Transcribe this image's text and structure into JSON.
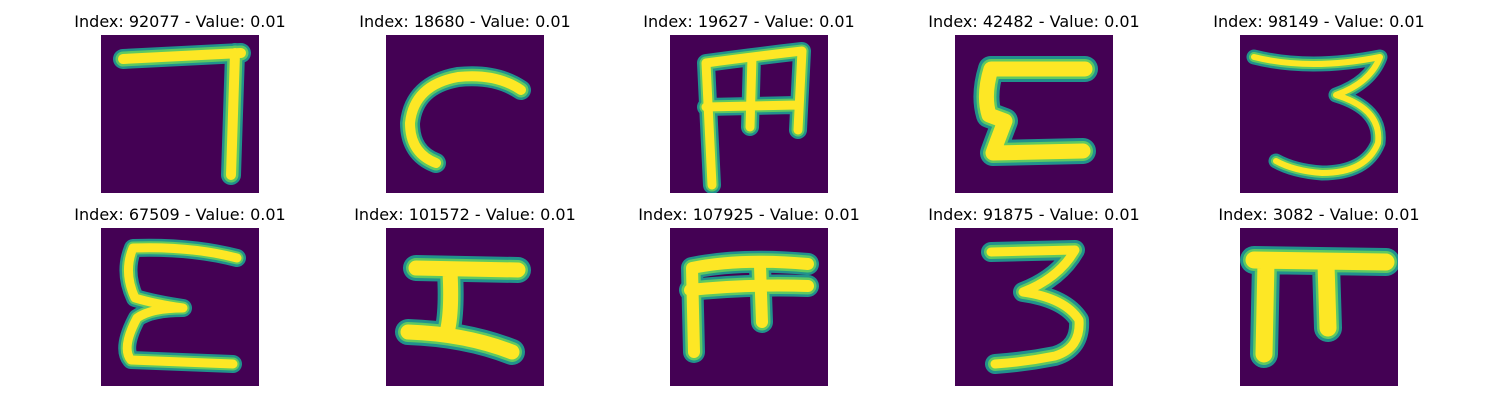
{
  "colors": {
    "background": "#440154",
    "stroke_outer": "#21918c",
    "stroke_mid": "#5ec962",
    "stroke_core": "#fde725"
  },
  "panels": [
    {
      "title": "Index: 92077 - Value: 0.01",
      "glyph": "seven-like-stroke"
    },
    {
      "title": "Index: 18680 - Value: 0.01",
      "glyph": "c-like-stroke"
    },
    {
      "title": "Index: 19627 - Value: 0.01",
      "glyph": "m-like-stroke"
    },
    {
      "title": "Index: 42482 - Value: 0.01",
      "glyph": "c-bracket-stroke"
    },
    {
      "title": "Index: 98149 - Value: 0.01",
      "glyph": "three-stroke"
    },
    {
      "title": "Index: 67509 - Value: 0.01",
      "glyph": "e-like-stroke"
    },
    {
      "title": "Index: 101572 - Value: 0.01",
      "glyph": "z-like-stroke"
    },
    {
      "title": "Index: 107925 - Value: 0.01",
      "glyph": "pi-like-stroke"
    },
    {
      "title": "Index: 91875 - Value: 0.01",
      "glyph": "three-stroke"
    },
    {
      "title": "Index: 3082 - Value: 0.01",
      "glyph": "pi-stroke"
    }
  ]
}
